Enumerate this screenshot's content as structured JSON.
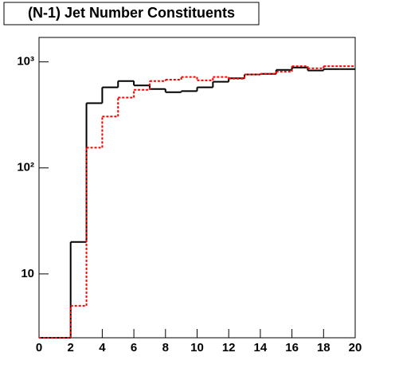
{
  "chart_data": {
    "type": "histogram",
    "title": "(N-1) Jet Number Constituents",
    "bins": [
      0,
      1,
      2,
      3,
      4,
      5,
      6,
      7,
      8,
      9,
      10,
      11,
      12,
      13,
      14,
      15,
      16,
      17,
      18,
      19,
      20
    ],
    "series": [
      {
        "color": "#000000",
        "dash": false,
        "values": [
          0,
          0,
          20,
          408,
          575,
          660,
          600,
          555,
          518,
          530,
          575,
          650,
          700,
          760,
          770,
          840,
          885,
          830,
          855,
          855
        ]
      },
      {
        "color": "#ff0000",
        "dash": true,
        "values": [
          0,
          0,
          5,
          155,
          305,
          460,
          545,
          660,
          680,
          720,
          670,
          720,
          695,
          760,
          770,
          810,
          910,
          870,
          910,
          910
        ]
      }
    ],
    "xlim": [
      0,
      20
    ],
    "xticks": [
      0,
      2,
      4,
      6,
      8,
      10,
      12,
      14,
      16,
      18,
      20
    ],
    "ylim": [
      2.5,
      1700
    ],
    "log_y": true,
    "yticks": [
      10,
      {
        "value": 100,
        "label": "10²"
      },
      {
        "value": 1000,
        "label": "10³"
      }
    ]
  }
}
